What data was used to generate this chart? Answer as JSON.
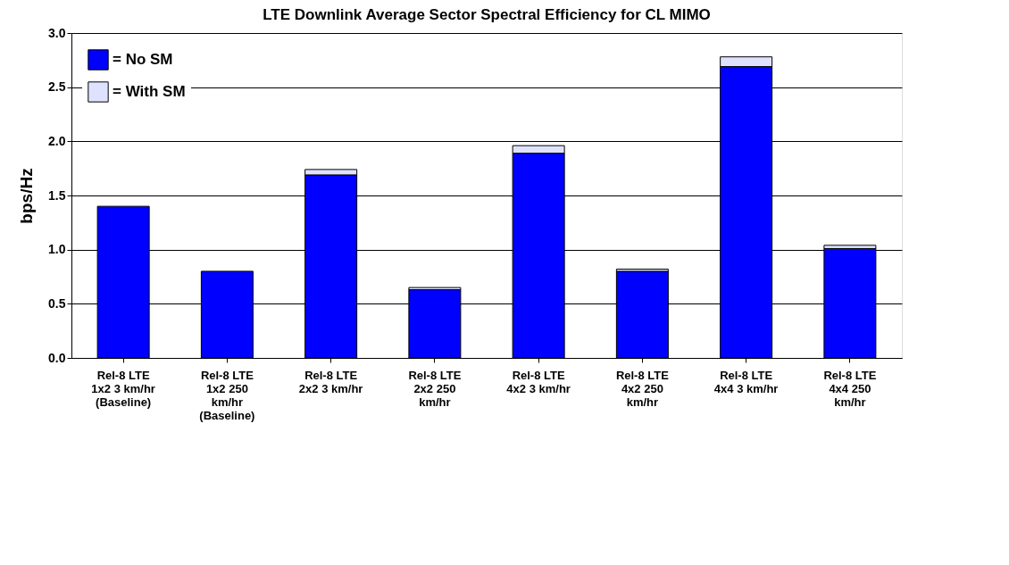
{
  "chart_data": {
    "type": "bar",
    "title": "LTE Downlink Average Sector Spectral Efficiency for CL MIMO",
    "ylabel": "bps/Hz",
    "categories": [
      "Rel-8 LTE\n1x2 3 km/hr\n(Baseline)",
      "Rel-8 LTE\n1x2 250\nkm/hr\n(Baseline)",
      "Rel-8 LTE\n2x2 3 km/hr",
      "Rel-8 LTE\n2x2 250\nkm/hr",
      "Rel-8 LTE\n4x2 3 km/hr",
      "Rel-8 LTE\n4x2 250\nkm/hr",
      "Rel-8 LTE\n4x4 3 km/hr",
      "Rel-8 LTE\n4x4 250\nkm/hr"
    ],
    "stacked": true,
    "series": [
      {
        "name": "= No SM",
        "color": "#0000ff",
        "values": [
          1.4,
          0.8,
          1.69,
          0.63,
          1.89,
          0.8,
          2.69,
          1.01
        ]
      },
      {
        "name": "= With SM",
        "color": "#dfe2ff",
        "values": [
          null,
          null,
          0.05,
          0.02,
          0.07,
          0.02,
          0.09,
          0.03
        ]
      }
    ],
    "ylim": [
      0,
      3.0
    ],
    "yticks": [
      {
        "value": 0,
        "label": "0.0"
      },
      {
        "value": 0.5,
        "label": "0.5"
      },
      {
        "value": 1.0,
        "label": "1.0"
      },
      {
        "value": 1.5,
        "label": "1.5"
      },
      {
        "value": 2.0,
        "label": "2.0"
      },
      {
        "value": 2.5,
        "label": "2.5"
      },
      {
        "value": 3.0,
        "label": "3.0"
      }
    ],
    "grid": "y",
    "legend": "top left"
  }
}
